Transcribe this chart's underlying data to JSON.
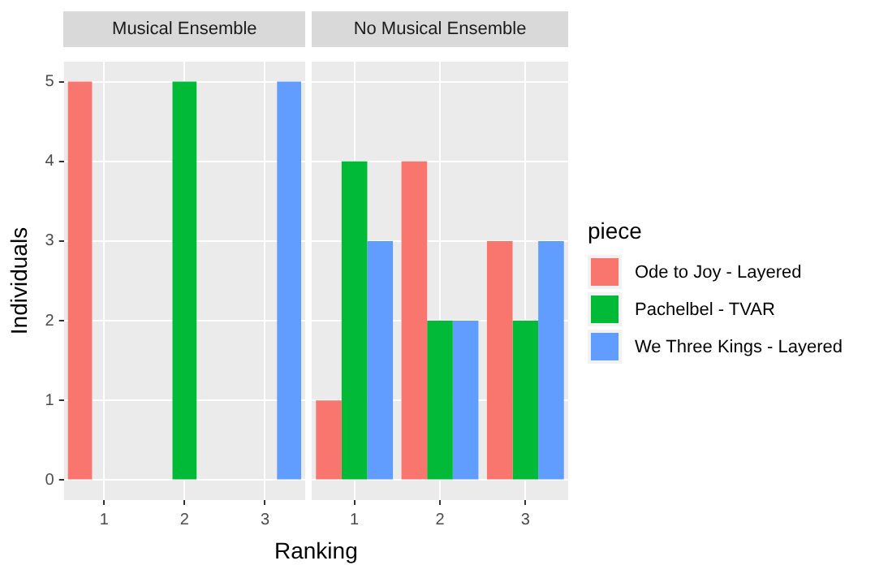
{
  "chart_data": [
    {
      "type": "bar",
      "title": "Musical Ensemble",
      "xlabel": "Ranking",
      "ylabel": "Individuals",
      "categories": [
        "1",
        "2",
        "3"
      ],
      "series": [
        {
          "name": "Ode to Joy - Layered",
          "color": "#f8766d",
          "values": [
            5,
            0,
            0
          ]
        },
        {
          "name": "Pachelbel - TVAR",
          "color": "#00ba38",
          "values": [
            0,
            5,
            0
          ]
        },
        {
          "name": "We Three Kings - Layered",
          "color": "#619cff",
          "values": [
            0,
            0,
            5
          ]
        }
      ],
      "ylim": [
        -0.25,
        5.25
      ],
      "yticks": [
        0,
        1,
        2,
        3,
        4,
        5
      ],
      "grid": true,
      "legend": "right",
      "legend_title": "piece"
    },
    {
      "type": "bar",
      "title": "No Musical Ensemble",
      "categories": [
        "1",
        "2",
        "3"
      ],
      "series": [
        {
          "color": "#f8766d",
          "values": [
            1,
            4,
            3
          ]
        },
        {
          "color": "#00ba38",
          "values": [
            4,
            2,
            2
          ]
        },
        {
          "color": "#619cff",
          "values": [
            3,
            2,
            3
          ]
        }
      ],
      "ylim": [
        -0.25,
        5.25
      ],
      "yticks": [
        0,
        1,
        2,
        3,
        4,
        5
      ],
      "grid": true,
      "tick_labels": "x"
    }
  ]
}
